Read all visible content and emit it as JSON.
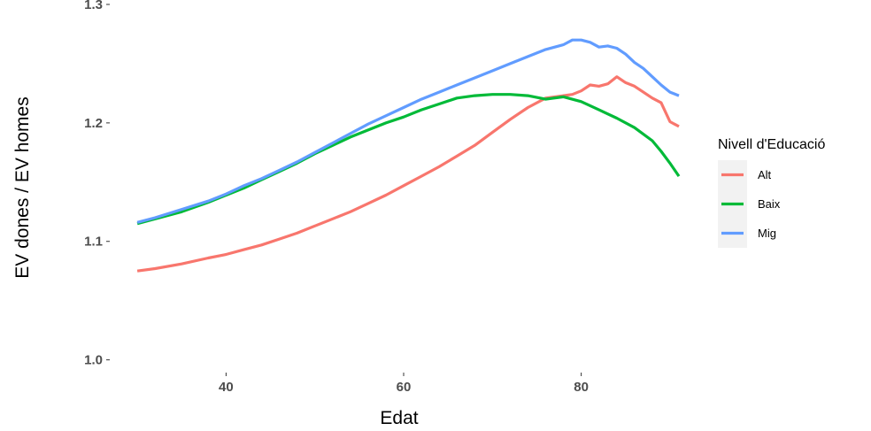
{
  "chart_data": {
    "type": "line",
    "xlabel": "Edat",
    "ylabel": "EV dones / EV homes",
    "xlim": [
      27,
      92
    ],
    "ylim": [
      0.99,
      1.3
    ],
    "xticks": [
      40,
      60,
      80
    ],
    "yticks": [
      1.0,
      1.1,
      1.2,
      1.3
    ],
    "grid": false,
    "legend": {
      "title": "Nivell d'Educació",
      "position": "right"
    },
    "series": [
      {
        "name": "Alt",
        "color": "#F8766D",
        "x": [
          30,
          32,
          35,
          38,
          40,
          42,
          44,
          46,
          48,
          50,
          52,
          54,
          56,
          58,
          60,
          62,
          64,
          66,
          68,
          70,
          72,
          74,
          76,
          78,
          79,
          80,
          81,
          82,
          83,
          84,
          85,
          86,
          87,
          88,
          89,
          90,
          91
        ],
        "y": [
          1.075,
          1.077,
          1.081,
          1.086,
          1.089,
          1.093,
          1.097,
          1.102,
          1.107,
          1.113,
          1.119,
          1.125,
          1.132,
          1.139,
          1.147,
          1.155,
          1.163,
          1.172,
          1.181,
          1.192,
          1.203,
          1.213,
          1.221,
          1.223,
          1.224,
          1.227,
          1.232,
          1.231,
          1.233,
          1.239,
          1.234,
          1.231,
          1.226,
          1.221,
          1.217,
          1.201,
          1.197
        ]
      },
      {
        "name": "Baix",
        "color": "#00BA38",
        "x": [
          30,
          32,
          35,
          38,
          40,
          42,
          44,
          46,
          48,
          50,
          52,
          54,
          56,
          58,
          60,
          62,
          64,
          66,
          68,
          70,
          72,
          74,
          76,
          78,
          80,
          82,
          84,
          86,
          88,
          89,
          90,
          91
        ],
        "y": [
          1.115,
          1.119,
          1.125,
          1.133,
          1.139,
          1.145,
          1.152,
          1.159,
          1.166,
          1.174,
          1.181,
          1.188,
          1.194,
          1.2,
          1.205,
          1.211,
          1.216,
          1.221,
          1.223,
          1.224,
          1.224,
          1.223,
          1.22,
          1.222,
          1.218,
          1.211,
          1.204,
          1.196,
          1.185,
          1.176,
          1.166,
          1.155
        ]
      },
      {
        "name": "Mig",
        "color": "#619CFF",
        "x": [
          30,
          32,
          35,
          38,
          40,
          42,
          44,
          46,
          48,
          50,
          52,
          54,
          56,
          58,
          60,
          62,
          64,
          66,
          68,
          70,
          72,
          74,
          76,
          78,
          79,
          80,
          81,
          82,
          83,
          84,
          85,
          86,
          87,
          88,
          89,
          90,
          91
        ],
        "y": [
          1.116,
          1.12,
          1.127,
          1.134,
          1.14,
          1.147,
          1.153,
          1.16,
          1.167,
          1.175,
          1.183,
          1.191,
          1.199,
          1.206,
          1.213,
          1.22,
          1.226,
          1.232,
          1.238,
          1.244,
          1.25,
          1.256,
          1.262,
          1.266,
          1.27,
          1.27,
          1.268,
          1.264,
          1.265,
          1.263,
          1.258,
          1.251,
          1.246,
          1.239,
          1.232,
          1.226,
          1.223
        ]
      }
    ]
  }
}
